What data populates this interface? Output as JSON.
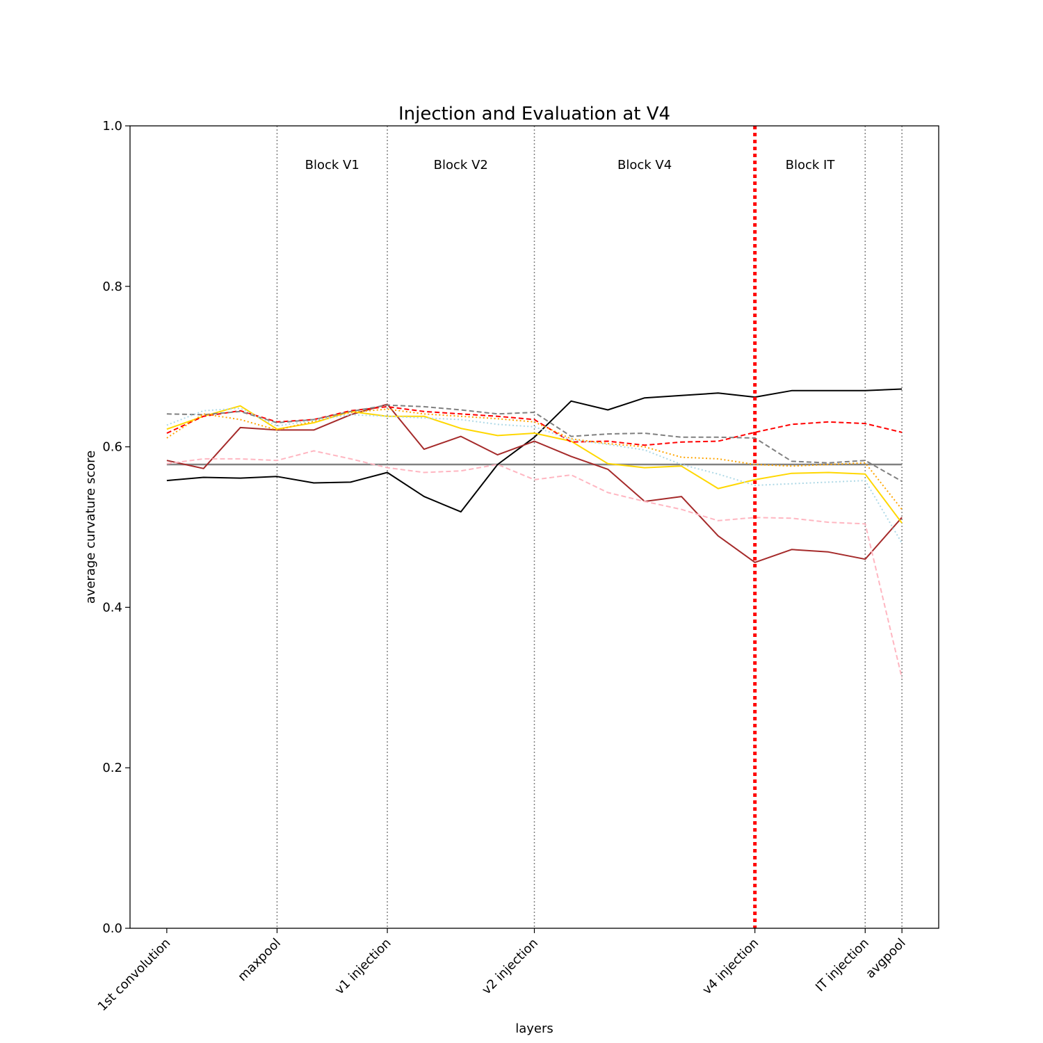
{
  "chart_data": {
    "type": "line",
    "title": "Injection and Evaluation at V4",
    "xlabel": "layers",
    "ylabel": "average curvature score",
    "ylim": [
      0,
      1
    ],
    "xlim": [
      -1,
      21
    ],
    "yticks": [
      0.0,
      0.2,
      0.4,
      0.6,
      0.8,
      1.0
    ],
    "ytick_labels": [
      "0.0",
      "0.2",
      "0.4",
      "0.6",
      "0.8",
      "1.0"
    ],
    "xticks": [
      {
        "x": 0,
        "label": "1st convolution"
      },
      {
        "x": 3,
        "label": "maxpool"
      },
      {
        "x": 6,
        "label": "v1 injection"
      },
      {
        "x": 10,
        "label": "v2 injection"
      },
      {
        "x": 16,
        "label": "v4 injection"
      },
      {
        "x": 19,
        "label": "IT injection"
      },
      {
        "x": 20,
        "label": "avgpool"
      }
    ],
    "block_separators": [
      3,
      6,
      10,
      19,
      20
    ],
    "injection_marker": {
      "x": 16,
      "color": "#ff0000"
    },
    "block_labels": [
      {
        "x": 4.5,
        "label": "Block V1"
      },
      {
        "x": 8,
        "label": "Block V2"
      },
      {
        "x": 13,
        "label": "Block V4"
      },
      {
        "x": 17.5,
        "label": "Block IT"
      }
    ],
    "reference_line": {
      "y": 0.578,
      "color": "#808080"
    },
    "x": [
      0,
      1,
      2,
      3,
      4,
      5,
      6,
      7,
      8,
      9,
      10,
      11,
      12,
      13,
      14,
      15,
      16,
      17,
      18,
      19,
      20
    ],
    "series": [
      {
        "color": "#000000",
        "style": "solid",
        "values": [
          0.558,
          0.562,
          0.561,
          0.563,
          0.555,
          0.556,
          0.568,
          0.538,
          0.519,
          0.578,
          0.612,
          0.657,
          0.646,
          0.661,
          0.664,
          0.667,
          0.662,
          0.67,
          0.67,
          0.67,
          0.672
        ]
      },
      {
        "color": "#a52a2a",
        "style": "solid",
        "values": [
          0.583,
          0.573,
          0.624,
          0.621,
          0.621,
          0.64,
          0.653,
          0.597,
          0.613,
          0.59,
          0.607,
          0.588,
          0.572,
          0.532,
          0.538,
          0.489,
          0.456,
          0.472,
          0.469,
          0.46,
          0.512
        ]
      },
      {
        "color": "#ffd700",
        "style": "solid",
        "values": [
          0.622,
          0.638,
          0.651,
          0.622,
          0.63,
          0.644,
          0.638,
          0.638,
          0.623,
          0.614,
          0.617,
          0.607,
          0.579,
          0.574,
          0.576,
          0.548,
          0.559,
          0.567,
          0.568,
          0.566,
          0.505
        ]
      },
      {
        "color": "#ff0000",
        "style": "dashed",
        "values": [
          0.617,
          0.638,
          0.645,
          0.631,
          0.634,
          0.645,
          0.65,
          0.644,
          0.641,
          0.638,
          0.634,
          0.606,
          0.607,
          0.602,
          0.606,
          0.607,
          0.618,
          0.628,
          0.631,
          0.629,
          0.618
        ]
      },
      {
        "color": "#808080",
        "style": "dashed",
        "values": [
          0.641,
          0.64,
          0.644,
          0.63,
          0.634,
          0.644,
          0.652,
          0.65,
          0.646,
          0.641,
          0.643,
          0.613,
          0.616,
          0.617,
          0.612,
          0.612,
          0.611,
          0.582,
          0.58,
          0.583,
          0.557
        ]
      },
      {
        "color": "#ffb6c1",
        "style": "dashed",
        "values": [
          0.579,
          0.585,
          0.585,
          0.583,
          0.595,
          0.585,
          0.574,
          0.568,
          0.57,
          0.578,
          0.559,
          0.565,
          0.543,
          0.532,
          0.522,
          0.508,
          0.512,
          0.511,
          0.506,
          0.504,
          0.312
        ]
      },
      {
        "color": "#ffa500",
        "style": "dotted",
        "values": [
          0.611,
          0.641,
          0.634,
          0.621,
          0.632,
          0.643,
          0.647,
          0.641,
          0.638,
          0.635,
          0.631,
          0.61,
          0.604,
          0.6,
          0.587,
          0.585,
          0.578,
          0.576,
          0.578,
          0.58,
          0.522
        ]
      },
      {
        "color": "#add8e6",
        "style": "dotted",
        "values": [
          0.627,
          0.645,
          0.648,
          0.626,
          0.633,
          0.64,
          0.638,
          0.636,
          0.634,
          0.628,
          0.625,
          0.609,
          0.603,
          0.596,
          0.578,
          0.566,
          0.552,
          0.554,
          0.556,
          0.558,
          0.48
        ]
      }
    ]
  }
}
